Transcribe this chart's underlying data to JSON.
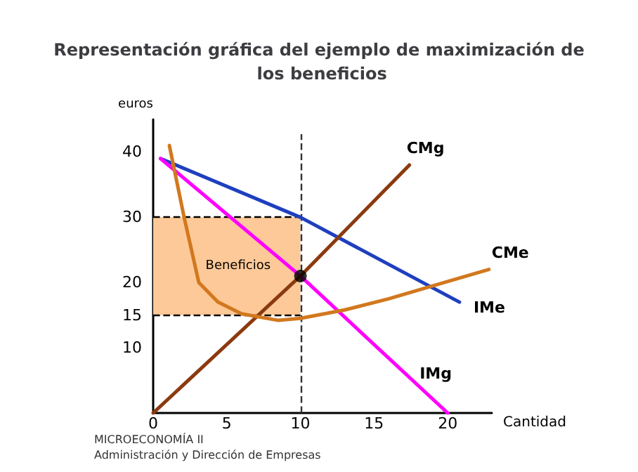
{
  "chart_data": {
    "type": "line",
    "title": "Representación gráfica del ejemplo de maximización de los beneficios",
    "xlabel": "Cantidad",
    "ylabel": "euros",
    "xlim": [
      0,
      23
    ],
    "xticks": [
      0,
      5,
      10,
      15,
      20
    ],
    "ylim": [
      0,
      45
    ],
    "yticks": [
      10,
      15,
      20,
      30,
      40
    ],
    "series": [
      {
        "name": "IMe",
        "color": "#1f3fbf",
        "x": [
          0.5,
          10,
          20.8
        ],
        "values": [
          39,
          30,
          17
        ]
      },
      {
        "name": "IMg",
        "color": "#ff00ff",
        "x": [
          0.5,
          10,
          20
        ],
        "values": [
          39,
          21,
          0
        ]
      },
      {
        "name": "CMg",
        "color": "#8b3a0f",
        "x": [
          0,
          10,
          17.4
        ],
        "values": [
          0,
          21,
          38
        ]
      },
      {
        "name": "CMe",
        "color": "#d2781e",
        "x": [
          1.1,
          2.1,
          3.1,
          4.4,
          6,
          8.5,
          10,
          13,
          16,
          19,
          22.8
        ],
        "values": [
          41,
          30,
          20,
          17,
          15.2,
          14.2,
          14.5,
          15.8,
          17.5,
          19.5,
          22
        ]
      },
      {
        "type": "scatter",
        "marker": "circle",
        "color": "#000000",
        "x": [
          10
        ],
        "values": [
          21
        ]
      }
    ],
    "ref_lines": [
      {
        "axis": "x",
        "value": 10,
        "line_style": "dashed",
        "color": "#333333"
      },
      {
        "axis": "y",
        "value": 30,
        "line_style": "dashed",
        "color": "#000000"
      },
      {
        "axis": "y",
        "value": 15,
        "line_style": "dashed",
        "color": "#000000"
      }
    ],
    "bands": [
      {
        "axis": "y",
        "from": 15,
        "to": 30,
        "label": "Beneficios",
        "color": "#fdc998"
      }
    ],
    "annotations": [
      "MICROECONOMÍA II",
      "Administración y Dirección de Empresas"
    ],
    "grid": false,
    "legend": false,
    "marker": "none",
    "line_style": "solid"
  }
}
